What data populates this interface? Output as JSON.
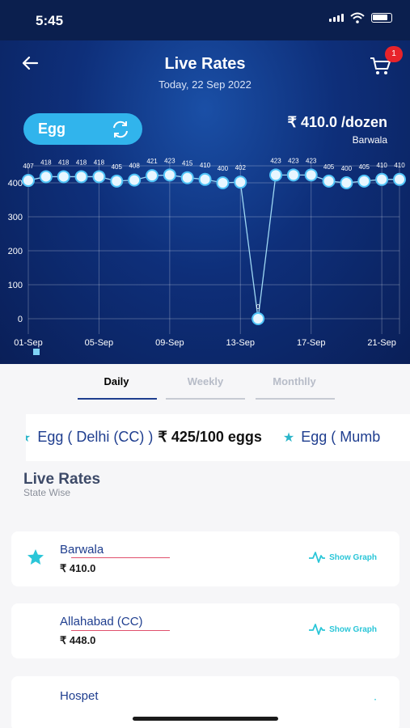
{
  "status": {
    "time": "5:45"
  },
  "header": {
    "title": "Live Rates",
    "date": "Today, 22 Sep 2022",
    "cart_count": "1"
  },
  "selector": {
    "product": "Egg"
  },
  "price": {
    "value": "₹ 410.0 /dozen",
    "place": "Barwala"
  },
  "chart_data": {
    "type": "line",
    "x": [
      "01-Sep",
      "02-Sep",
      "03-Sep",
      "04-Sep",
      "05-Sep",
      "06-Sep",
      "07-Sep",
      "08-Sep",
      "09-Sep",
      "10-Sep",
      "11-Sep",
      "12-Sep",
      "13-Sep",
      "14-Sep",
      "15-Sep",
      "16-Sep",
      "17-Sep",
      "18-Sep",
      "19-Sep",
      "20-Sep",
      "21-Sep",
      "22-Sep"
    ],
    "values": [
      407,
      418,
      418,
      418,
      418,
      405,
      408,
      421,
      423,
      415,
      410,
      400,
      402,
      0,
      423,
      423,
      423,
      405,
      400,
      405,
      410,
      410
    ],
    "data_labels": [
      "407",
      "418",
      "418",
      "418",
      "418",
      "405",
      "408",
      "421",
      "423",
      "415",
      "410",
      "400",
      "402",
      "0",
      "423",
      "423",
      "423",
      "405",
      "400",
      "405",
      "410",
      "410"
    ],
    "x_ticks": [
      "01-Sep",
      "05-Sep",
      "09-Sep",
      "13-Sep",
      "17-Sep",
      "21-Sep"
    ],
    "y_ticks": [
      "0",
      "100",
      "200",
      "300",
      "400"
    ],
    "ylim": [
      -30,
      460
    ],
    "grid": true,
    "colors": {
      "line": "#9fd8f4",
      "point": "#e8f6ff",
      "point_ring": "#4fc3f7"
    }
  },
  "tabs": [
    {
      "label": "Daily",
      "active": true
    },
    {
      "label": "Weekly",
      "active": false
    },
    {
      "label": "Monthlly",
      "active": false
    }
  ],
  "ticker": [
    {
      "name": "Egg ( Delhi (CC) )",
      "price": "₹ 425/100 eggs"
    },
    {
      "name": "Egg ( Mumb",
      "price": ""
    }
  ],
  "section": {
    "title": "Live Rates",
    "subtitle": "State Wise"
  },
  "rates": [
    {
      "name": "Barwala",
      "price": "₹ 410.0",
      "show_graph": "Show Graph",
      "favorite": true
    },
    {
      "name": "Allahabad (CC)",
      "price": "₹ 448.0",
      "show_graph": "Show Graph",
      "favorite": false
    },
    {
      "name": "Hospet",
      "price": "",
      "show_graph": "",
      "favorite": false
    }
  ],
  "colors": {
    "accent": "#31b4ec",
    "header_bg": "#0e2f7a",
    "link": "#1f3e8f",
    "graph": "#2bc6d8"
  }
}
